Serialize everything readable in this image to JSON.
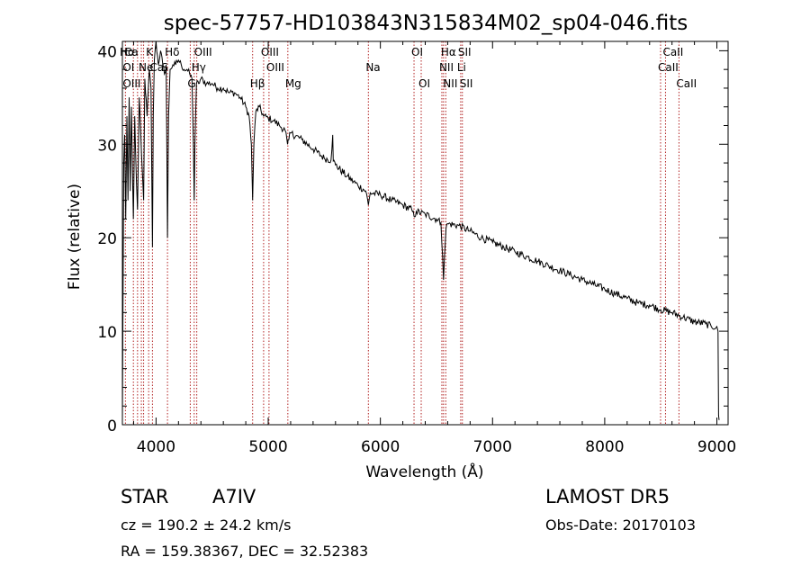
{
  "chart_data": {
    "type": "line",
    "title": "spec-57757-HD103843N315834M02_sp04-046.fits",
    "xlabel": "Wavelength (Å)",
    "ylabel": "Flux (relative)",
    "xlim": [
      3700,
      9100
    ],
    "ylim": [
      0,
      41
    ],
    "x_ticks": [
      4000,
      5000,
      6000,
      7000,
      8000,
      9000
    ],
    "x_tick_labels": [
      "4000",
      "5000",
      "6000",
      "7000",
      "8000",
      "9000"
    ],
    "y_ticks": [
      0,
      10,
      20,
      30,
      40
    ],
    "y_tick_labels": [
      "0",
      "10",
      "20",
      "30",
      "40"
    ],
    "grid": false,
    "line_color": "#000000",
    "marker_color": "#b22222",
    "spectrum": [
      [
        3700,
        0.5
      ],
      [
        3705,
        12
      ],
      [
        3712,
        28
      ],
      [
        3720,
        31
      ],
      [
        3730,
        22
      ],
      [
        3740,
        33
      ],
      [
        3750,
        24
      ],
      [
        3760,
        35
      ],
      [
        3770,
        25
      ],
      [
        3780,
        34
      ],
      [
        3790,
        27
      ],
      [
        3798,
        22
      ],
      [
        3810,
        33
      ],
      [
        3825,
        26
      ],
      [
        3835,
        23
      ],
      [
        3850,
        35
      ],
      [
        3870,
        29
      ],
      [
        3889,
        24
      ],
      [
        3900,
        37
      ],
      [
        3920,
        33
      ],
      [
        3940,
        38
      ],
      [
        3955,
        36
      ],
      [
        3968,
        19
      ],
      [
        3975,
        33
      ],
      [
        3985,
        39
      ],
      [
        4000,
        41
      ],
      [
        4020,
        38.5
      ],
      [
        4040,
        40
      ],
      [
        4060,
        38.5
      ],
      [
        4075,
        37.5
      ],
      [
        4090,
        38.5
      ],
      [
        4102,
        20
      ],
      [
        4112,
        33
      ],
      [
        4125,
        38
      ],
      [
        4150,
        38.5
      ],
      [
        4175,
        38.5
      ],
      [
        4200,
        39
      ],
      [
        4225,
        38.5
      ],
      [
        4250,
        38
      ],
      [
        4275,
        38
      ],
      [
        4300,
        37.5
      ],
      [
        4320,
        37
      ],
      [
        4333,
        30
      ],
      [
        4340,
        24
      ],
      [
        4347,
        30
      ],
      [
        4360,
        36.5
      ],
      [
        4380,
        36.5
      ],
      [
        4400,
        37
      ],
      [
        4450,
        36.5
      ],
      [
        4500,
        36.5
      ],
      [
        4550,
        36
      ],
      [
        4600,
        36
      ],
      [
        4650,
        35.5
      ],
      [
        4700,
        35.5
      ],
      [
        4750,
        35
      ],
      [
        4800,
        34
      ],
      [
        4830,
        33
      ],
      [
        4850,
        30
      ],
      [
        4861,
        24
      ],
      [
        4872,
        30
      ],
      [
        4890,
        33.5
      ],
      [
        4920,
        34
      ],
      [
        4960,
        33
      ],
      [
        5000,
        32.8
      ],
      [
        5050,
        32.5
      ],
      [
        5100,
        32
      ],
      [
        5150,
        31.5
      ],
      [
        5167,
        30.5
      ],
      [
        5172,
        30
      ],
      [
        5184,
        30.5
      ],
      [
        5200,
        31.2
      ],
      [
        5300,
        30.5
      ],
      [
        5400,
        29.5
      ],
      [
        5500,
        28.5
      ],
      [
        5560,
        28.3
      ],
      [
        5575,
        31
      ],
      [
        5580,
        28.2
      ],
      [
        5600,
        27.8
      ],
      [
        5700,
        26.6
      ],
      [
        5800,
        25.6
      ],
      [
        5870,
        25
      ],
      [
        5893,
        23.5
      ],
      [
        5910,
        24.8
      ],
      [
        6000,
        24.6
      ],
      [
        6100,
        24
      ],
      [
        6200,
        23.5
      ],
      [
        6280,
        23
      ],
      [
        6300,
        22.3
      ],
      [
        6320,
        22.8
      ],
      [
        6400,
        22.5
      ],
      [
        6500,
        22
      ],
      [
        6540,
        21.6
      ],
      [
        6555,
        18
      ],
      [
        6563,
        15.5
      ],
      [
        6572,
        18
      ],
      [
        6585,
        21
      ],
      [
        6600,
        21.5
      ],
      [
        6700,
        21.3
      ],
      [
        6800,
        20.7
      ],
      [
        6900,
        20
      ],
      [
        7000,
        19.5
      ],
      [
        7100,
        19
      ],
      [
        7200,
        18.5
      ],
      [
        7300,
        18
      ],
      [
        7400,
        17.5
      ],
      [
        7500,
        17
      ],
      [
        7600,
        16.5
      ],
      [
        7700,
        16
      ],
      [
        7800,
        15.5
      ],
      [
        7900,
        15
      ],
      [
        8000,
        14.5
      ],
      [
        8100,
        14
      ],
      [
        8200,
        13.5
      ],
      [
        8300,
        13
      ],
      [
        8400,
        12.8
      ],
      [
        8500,
        12.3
      ],
      [
        8600,
        12
      ],
      [
        8700,
        11.5
      ],
      [
        8800,
        11
      ],
      [
        8900,
        10.8
      ],
      [
        8950,
        10.5
      ],
      [
        9000,
        10.5
      ],
      [
        9010,
        10
      ],
      [
        9015,
        1
      ],
      [
        9020,
        0.5
      ]
    ],
    "line_markers": [
      {
        "label": "Hα",
        "x": 3700,
        "row": 0
      },
      {
        "label": "Ca",
        "x": 3740,
        "row": 0
      },
      {
        "label": "K",
        "x": 3934,
        "row": 0
      },
      {
        "label": "Hδ",
        "x": 4102,
        "row": 0
      },
      {
        "label": "OIII",
        "x": 4363,
        "row": 0
      },
      {
        "label": "OIII",
        "x": 4959,
        "row": 0
      },
      {
        "label": "OI",
        "x": 6300,
        "row": 0
      },
      {
        "label": "Hα",
        "x": 6563,
        "row": 0
      },
      {
        "label": "SII",
        "x": 6716,
        "row": 0
      },
      {
        "label": "CaII",
        "x": 8542,
        "row": 0
      },
      {
        "label": "OI",
        "x": 3727,
        "row": 1
      },
      {
        "label": "Ne",
        "x": 3869,
        "row": 1
      },
      {
        "label": "Ca",
        "x": 3968,
        "row": 1
      },
      {
        "label": "S",
        "x": 4072,
        "row": 1
      },
      {
        "label": "Hγ",
        "x": 4340,
        "row": 1
      },
      {
        "label": "OIII",
        "x": 5007,
        "row": 1
      },
      {
        "label": "NII",
        "x": 6548,
        "row": 1
      },
      {
        "label": "Li",
        "x": 6708,
        "row": 1
      },
      {
        "label": "CaII",
        "x": 8498,
        "row": 1
      },
      {
        "label": "OIII",
        "x": 3727,
        "row": 2
      },
      {
        "label": "G",
        "x": 4305,
        "row": 2
      },
      {
        "label": "Hβ",
        "x": 4861,
        "row": 2
      },
      {
        "label": "Mg",
        "x": 5175,
        "row": 2
      },
      {
        "label": "Na",
        "x": 5893,
        "row": 1
      },
      {
        "label": "OI",
        "x": 6364,
        "row": 2
      },
      {
        "label": "NII",
        "x": 6583,
        "row": 2
      },
      {
        "label": "SII",
        "x": 6731,
        "row": 2
      },
      {
        "label": "CaII",
        "x": 8662,
        "row": 2
      }
    ],
    "marker_lines": [
      3727,
      3798,
      3835,
      3869,
      3889,
      3934,
      3968,
      4102,
      4305,
      4340,
      4363,
      4861,
      4959,
      5007,
      5175,
      5893,
      6300,
      6364,
      6548,
      6563,
      6583,
      6716,
      6731,
      8498,
      8542,
      8662
    ]
  },
  "info": {
    "object_class": "STAR",
    "subclass": "A7IV",
    "survey": "LAMOST  DR5",
    "redshift": "cz = 190.2 ± 24.2 km/s",
    "obs_date": "Obs-Date: 20170103",
    "coords": "RA = 159.38367, DEC =  32.52383"
  }
}
